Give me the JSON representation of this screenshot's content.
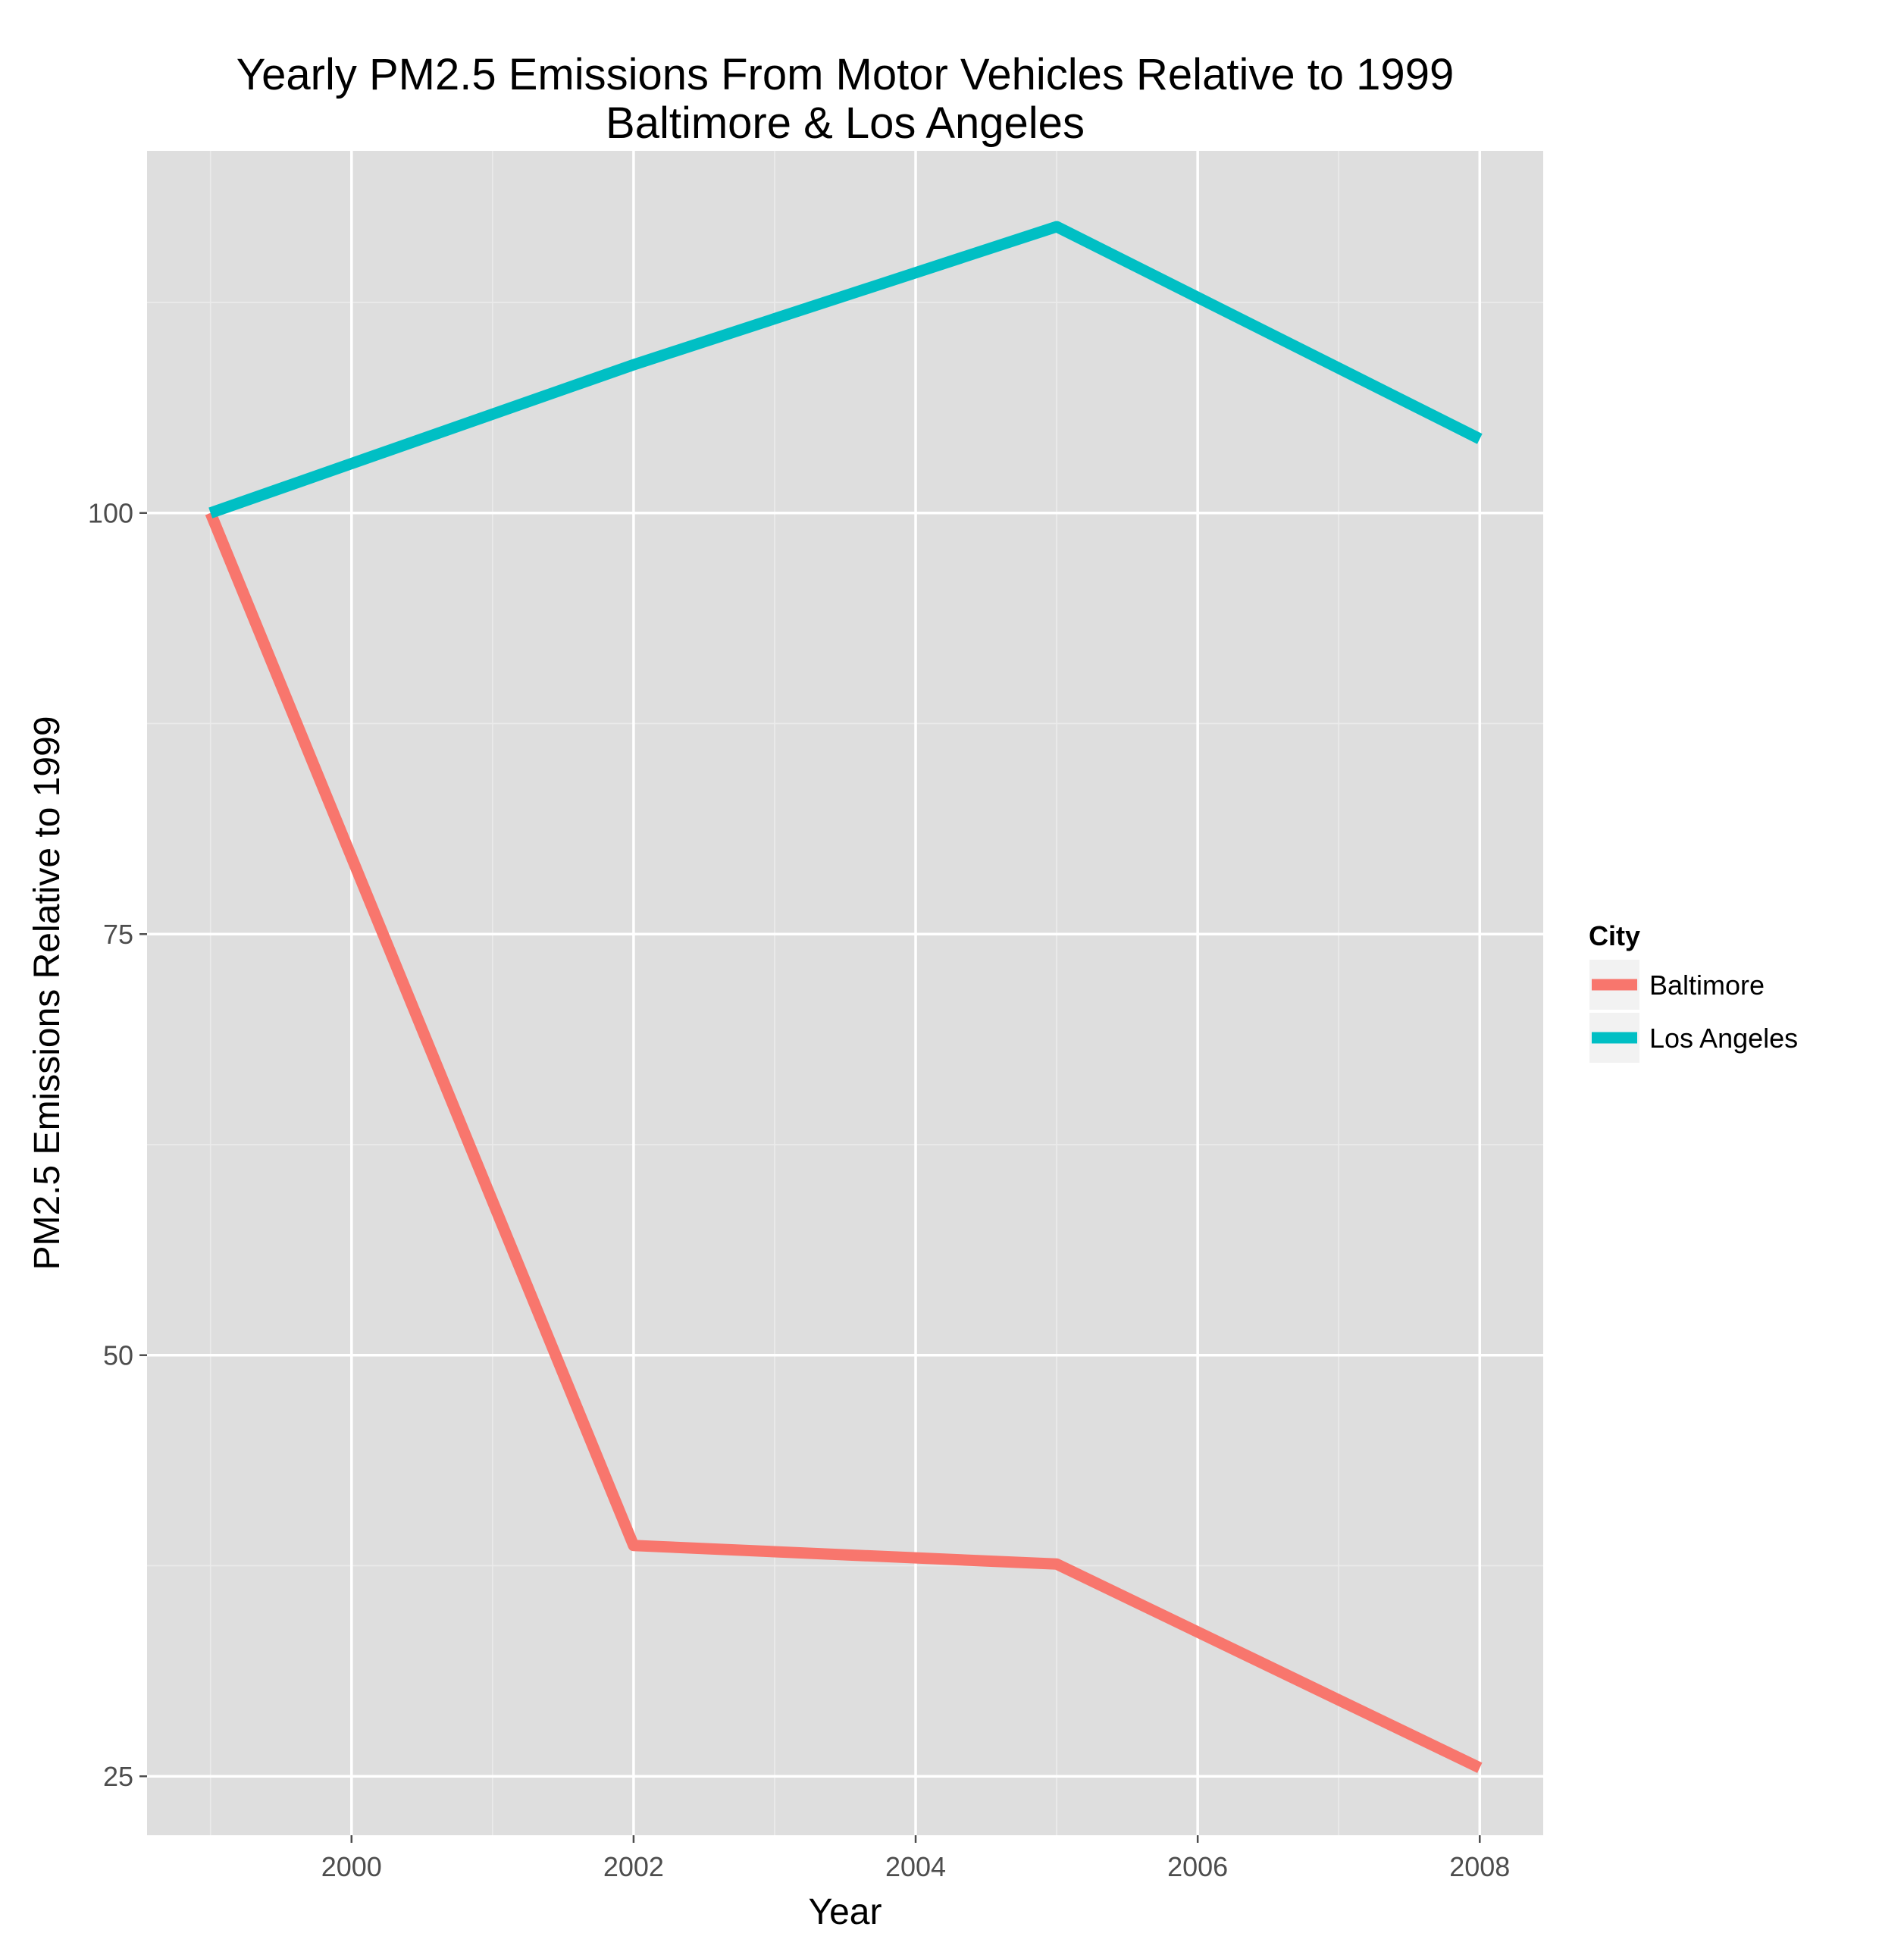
{
  "chart_data": {
    "type": "line",
    "title": "Yearly PM2.5 Emissions From Motor Vehicles Relative to 1999",
    "subtitle": "Baltimore & Los Angeles",
    "xlabel": "Year",
    "ylabel": "PM2.5 Emissions Relative to 1999",
    "x": [
      1999,
      2002,
      2005,
      2008
    ],
    "xlim": [
      1998.55,
      2008.45
    ],
    "ylim": [
      21.5,
      121.5
    ],
    "x_ticks": [
      2000,
      2002,
      2004,
      2006,
      2008
    ],
    "y_ticks": [
      25,
      50,
      75,
      100
    ],
    "grid": true,
    "legend": {
      "title": "City",
      "placement": "right"
    },
    "series": [
      {
        "name": "Baltimore",
        "color": "#F8766D",
        "values": [
          100,
          38.7,
          37.6,
          25.5
        ]
      },
      {
        "name": "Los Angeles",
        "color": "#00BFC4",
        "values": [
          100,
          108.8,
          117.0,
          104.4
        ]
      }
    ]
  }
}
